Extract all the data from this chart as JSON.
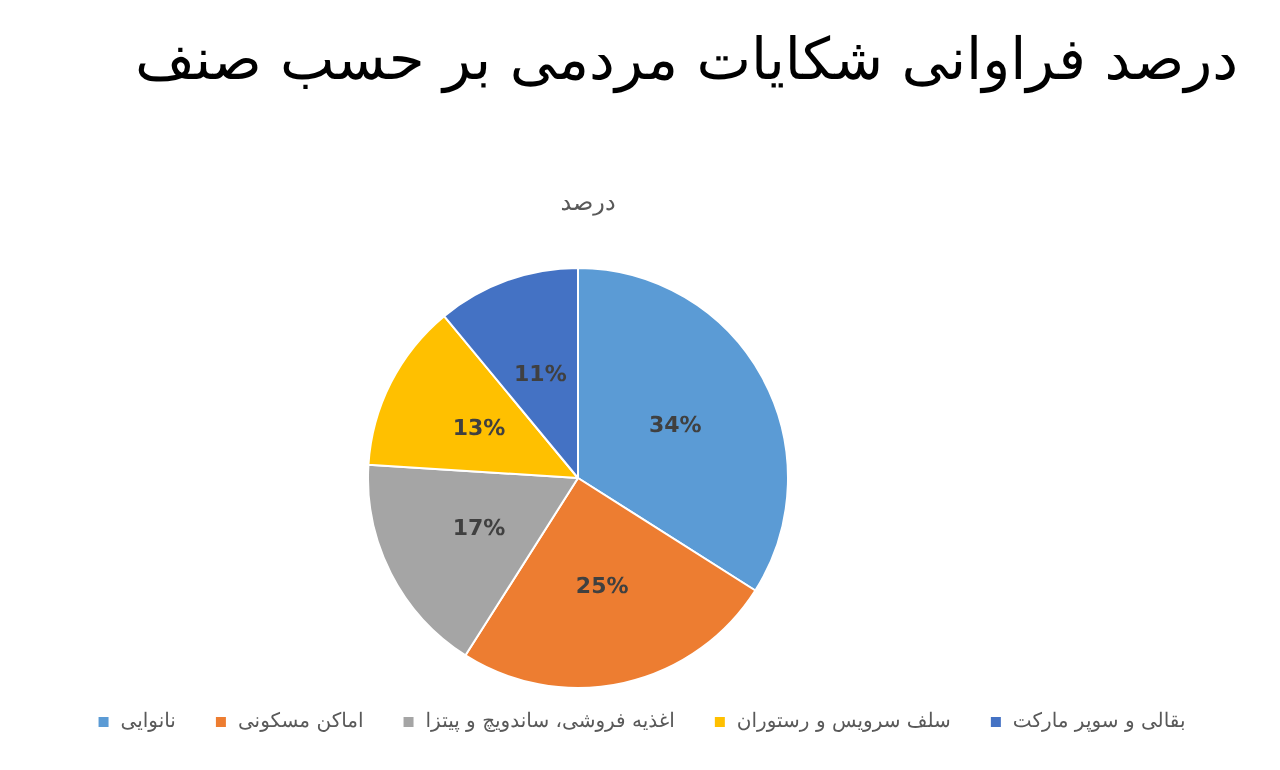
{
  "chart_data": {
    "type": "pie",
    "title": "درصد فراوانی شکایات مردمی بر حسب صنف",
    "subtitle": "درصد",
    "categories": [
      "نانوایی",
      "اماکن مسکونی",
      "اغذیه فروشی، ساندویچ و پیتزا",
      "سلف سرویس و رستوران",
      "بقالی و سوپر مارکت"
    ],
    "values": [
      34,
      25,
      17,
      13,
      11
    ],
    "colors": [
      "#5b9bd5",
      "#ed7d31",
      "#a5a5a5",
      "#ffc000",
      "#4472c4"
    ],
    "value_labels": [
      "34%",
      "25%",
      "17%",
      "13%",
      "11%"
    ],
    "legend": "bottom"
  }
}
